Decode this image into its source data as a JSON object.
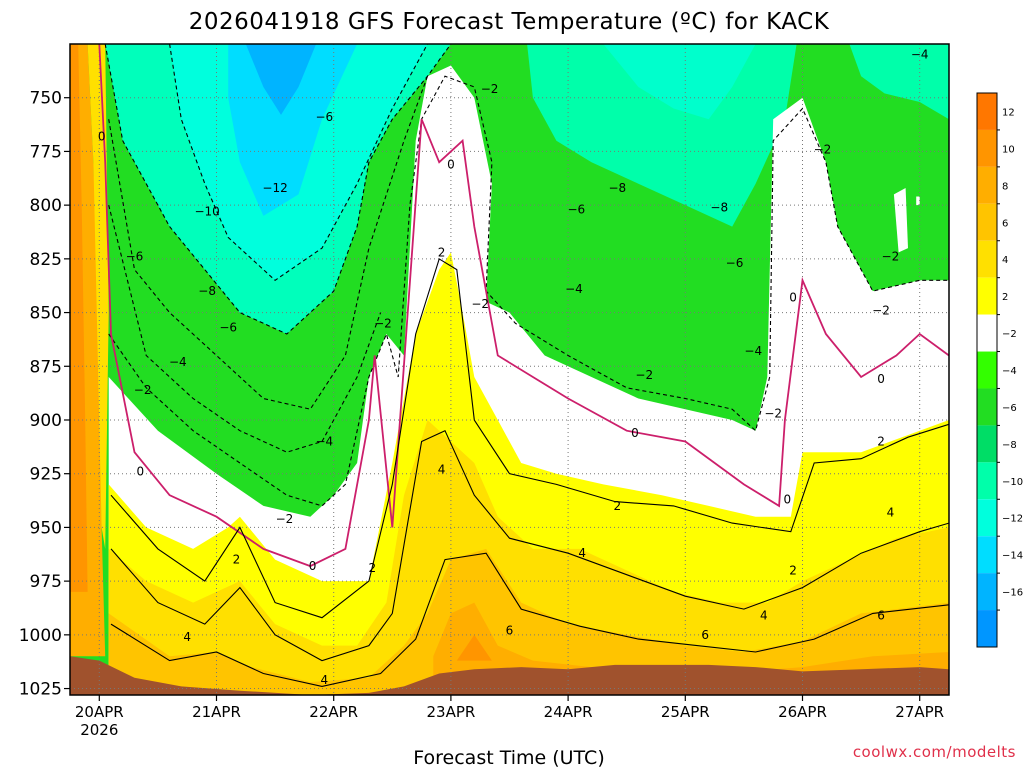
{
  "chart_data": {
    "type": "heatmap",
    "title": "2026041918 GFS Forecast Temperature (ºC) for KACK",
    "xlabel": "Forecast Time (UTC)",
    "ylabel": "",
    "credit": "coolwx.com/modelts",
    "x_ticks": [
      {
        "label": "20APR",
        "sublabel": "2026",
        "day": 20
      },
      {
        "label": "21APR",
        "sublabel": "",
        "day": 21
      },
      {
        "label": "22APR",
        "sublabel": "",
        "day": 22
      },
      {
        "label": "23APR",
        "sublabel": "",
        "day": 23
      },
      {
        "label": "24APR",
        "sublabel": "",
        "day": 24
      },
      {
        "label": "25APR",
        "sublabel": "",
        "day": 25
      },
      {
        "label": "26APR",
        "sublabel": "",
        "day": 26
      },
      {
        "label": "27APR",
        "sublabel": "",
        "day": 27
      }
    ],
    "xlim_days": [
      19.75,
      27.25
    ],
    "y_ticks": [
      750,
      775,
      800,
      825,
      850,
      875,
      900,
      925,
      950,
      975,
      1000,
      1025
    ],
    "ylim_hpa": [
      1028,
      725
    ],
    "y_axis_reversed": true,
    "grid": true,
    "colorbar": {
      "levels": [
        12,
        10,
        8,
        6,
        4,
        2,
        -2,
        -4,
        -6,
        -8,
        -10,
        -12,
        -14,
        -16
      ],
      "labels": [
        "12",
        "10",
        "8",
        "6",
        "4",
        "2",
        "−2",
        "−4",
        "−6",
        "−8",
        "−10",
        "−12",
        "−14",
        "−16"
      ],
      "colors": [
        "#ff7700",
        "#ff9500",
        "#ffae00",
        "#ffc400",
        "#ffe000",
        "#ffff00",
        "#ffffff",
        "#33ff00",
        "#22dd22",
        "#00dd66",
        "#00ffaa",
        "#00ffdd",
        "#00ddff",
        "#00b4ff",
        "#0096ff"
      ]
    },
    "colors": {
      "terrain": "#a0522d",
      "zero_line": "#cc1f6b",
      "contour": "#000000"
    },
    "contour_labels": [
      {
        "text": "0",
        "day": 20.02,
        "p": 768
      },
      {
        "text": "−2",
        "day": 20.37,
        "p": 886
      },
      {
        "text": "0",
        "day": 20.35,
        "p": 924
      },
      {
        "text": "−6",
        "day": 20.3,
        "p": 824
      },
      {
        "text": "−4",
        "day": 20.67,
        "p": 873
      },
      {
        "text": "−8",
        "day": 20.92,
        "p": 840
      },
      {
        "text": "−10",
        "day": 20.92,
        "p": 803
      },
      {
        "text": "−6",
        "day": 21.1,
        "p": 857
      },
      {
        "text": "−12",
        "day": 21.5,
        "p": 792
      },
      {
        "text": "−6",
        "day": 21.92,
        "p": 759
      },
      {
        "text": "−4",
        "day": 21.92,
        "p": 910
      },
      {
        "text": "−2",
        "day": 21.58,
        "p": 946
      },
      {
        "text": "2",
        "day": 21.17,
        "p": 965
      },
      {
        "text": "0",
        "day": 21.82,
        "p": 968
      },
      {
        "text": "2",
        "day": 22.33,
        "p": 969
      },
      {
        "text": "4",
        "day": 20.75,
        "p": 1001
      },
      {
        "text": "4",
        "day": 21.92,
        "p": 1021
      },
      {
        "text": "−2",
        "day": 22.42,
        "p": 855
      },
      {
        "text": "2",
        "day": 22.92,
        "p": 822
      },
      {
        "text": "4",
        "day": 22.92,
        "p": 923
      },
      {
        "text": "0",
        "day": 23.0,
        "p": 781
      },
      {
        "text": "−2",
        "day": 23.33,
        "p": 746
      },
      {
        "text": "−2",
        "day": 23.25,
        "p": 846
      },
      {
        "text": "6",
        "day": 23.5,
        "p": 998
      },
      {
        "text": "−4",
        "day": 24.05,
        "p": 839
      },
      {
        "text": "−6",
        "day": 24.07,
        "p": 802
      },
      {
        "text": "−8",
        "day": 24.42,
        "p": 792
      },
      {
        "text": "2",
        "day": 24.42,
        "p": 940
      },
      {
        "text": "4",
        "day": 24.12,
        "p": 962
      },
      {
        "text": "0",
        "day": 24.57,
        "p": 906
      },
      {
        "text": "−2",
        "day": 24.65,
        "p": 879
      },
      {
        "text": "−8",
        "day": 25.29,
        "p": 801
      },
      {
        "text": "−6",
        "day": 25.42,
        "p": 827
      },
      {
        "text": "6",
        "day": 25.17,
        "p": 1000
      },
      {
        "text": "−4",
        "day": 25.58,
        "p": 868
      },
      {
        "text": "−2",
        "day": 25.75,
        "p": 897
      },
      {
        "text": "0",
        "day": 25.87,
        "p": 937
      },
      {
        "text": "2",
        "day": 25.92,
        "p": 970
      },
      {
        "text": "4",
        "day": 25.67,
        "p": 991
      },
      {
        "text": "−2",
        "day": 26.17,
        "p": 774
      },
      {
        "text": "0",
        "day": 25.92,
        "p": 843
      },
      {
        "text": "−2",
        "day": 26.75,
        "p": 824
      },
      {
        "text": "−2",
        "day": 26.67,
        "p": 849
      },
      {
        "text": "0",
        "day": 26.67,
        "p": 881
      },
      {
        "text": "2",
        "day": 26.67,
        "p": 910
      },
      {
        "text": "4",
        "day": 26.75,
        "p": 943
      },
      {
        "text": "6",
        "day": 26.67,
        "p": 991
      },
      {
        "text": "−4",
        "day": 27.0,
        "p": 730
      }
    ]
  }
}
